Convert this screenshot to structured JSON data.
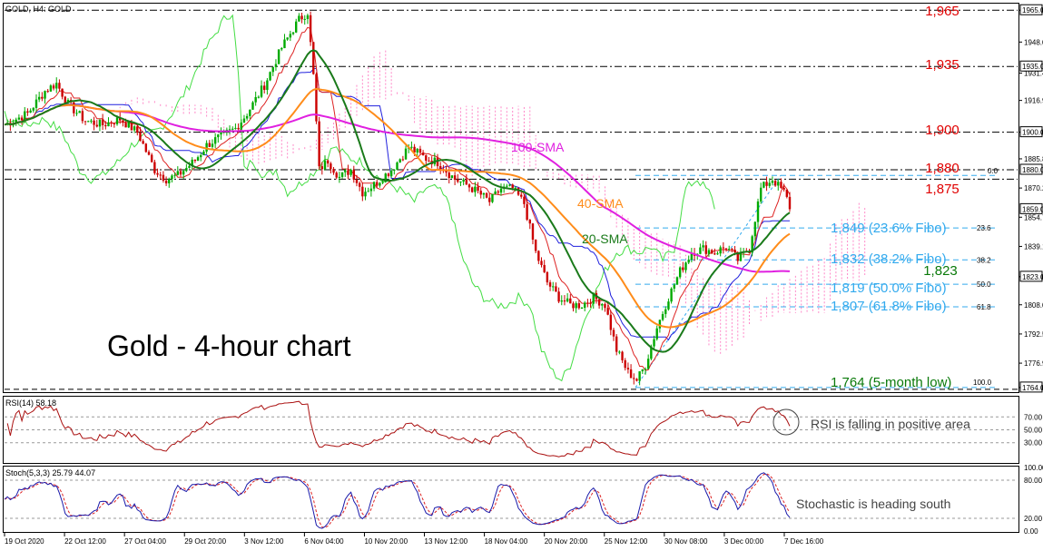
{
  "header": {
    "symbol_label": "GOLD, H4:  GOLD",
    "rsi_label": "RSI(14) 58.18",
    "stoch_label": "Stoch(5,3,3) 25.79 44.07"
  },
  "title": "Gold - 4-hour chart",
  "colors": {
    "up_candle": "#00aa00",
    "down_candle": "#cc0000",
    "sma20": "#1a7a1a",
    "sma40": "#ff8c1a",
    "sma100": "#e020e0",
    "level_red": "#e00000",
    "fibo": "#33aaee",
    "level_green": "#0a7a0a",
    "ichimoku_lead": "#44dd44",
    "ichimoku_blue": "#2020dd",
    "ichimoku_red": "#dd2222",
    "cloud": "#ff88c8",
    "rsi_line": "#aa1010",
    "stoch_main": "#1a1aaa",
    "stoch_signal": "#dd2222"
  },
  "price_axis": {
    "ticks": [
      "1965.00",
      "1948.02",
      "1931.47",
      "1916.92",
      "1900.00",
      "1885.82",
      "1870.27",
      "1854.72",
      "1839.17",
      "1823.00",
      "1808.07",
      "1792.52",
      "1776.97",
      "1764.00"
    ],
    "boxed": [
      "1965.00",
      "1935.00",
      "1900.00",
      "1880.00",
      "1859.02",
      "1823.00",
      "1764.00"
    ],
    "boxed_extra": "1935.00",
    "last_price": "1859.02"
  },
  "levels": {
    "red": [
      {
        "label": "1,965",
        "value": 1965
      },
      {
        "label": "1,935",
        "value": 1935
      },
      {
        "label": "1,900",
        "value": 1900
      },
      {
        "label": "1,880",
        "value": 1880
      },
      {
        "label": "1,875",
        "value": 1875
      }
    ],
    "fibo": [
      {
        "label": "1,849 (23.6% Fibo)",
        "value": 1849,
        "tag": "23.6"
      },
      {
        "label": "1,832 (38.2% Fibo)",
        "value": 1832,
        "tag": "38.2"
      },
      {
        "label": "1,819 (50.0% Fibo)",
        "value": 1819,
        "tag": "50.0"
      },
      {
        "label": "1,807 (61.8% Fibo)",
        "value": 1807,
        "tag": "61.8"
      }
    ],
    "fibo_top_tag": "0.0",
    "fibo_bottom_tag": "100.0",
    "green": [
      {
        "label": "1,823",
        "value": 1823
      },
      {
        "label": "1,764 (5-month low)",
        "value": 1764
      }
    ]
  },
  "sma_labels": {
    "sma100": "100-SMA",
    "sma40": "40-SMA",
    "sma20": "20-SMA"
  },
  "rsi": {
    "ticks": [
      "70.00",
      "50.00",
      "30.00"
    ],
    "note": "RSI is falling in positive area"
  },
  "stoch": {
    "ticks": [
      "100.00",
      "80.00",
      "20.00",
      "0.00"
    ],
    "note": "Stochastic is heading south"
  },
  "x_axis": {
    "labels": [
      "19 Oct 2020",
      "22 Oct 12:00",
      "27 Oct 04:00",
      "29 Oct 20:00",
      "3 Nov 12:00",
      "6 Nov 04:00",
      "10 Nov 20:00",
      "13 Nov 12:00",
      "18 Nov 04:00",
      "20 Nov 20:00",
      "25 Nov 12:00",
      "30 Nov 08:00",
      "3 Dec 00:00",
      "7 Dec 16:00"
    ]
  },
  "chart_data": {
    "type": "candlestick",
    "title": "Gold - 4-hour chart",
    "instrument": "GOLD, H4",
    "ylim": [
      1764,
      1968
    ],
    "x_start": "19 Oct 2020",
    "x_end": "7 Dec 16:00",
    "close_path": [
      [
        0,
        1904
      ],
      [
        8,
        1910
      ],
      [
        14,
        1922
      ],
      [
        18,
        1926
      ],
      [
        22,
        1915
      ],
      [
        28,
        1906
      ],
      [
        34,
        1904
      ],
      [
        40,
        1907
      ],
      [
        46,
        1900
      ],
      [
        52,
        1880
      ],
      [
        56,
        1875
      ],
      [
        60,
        1877
      ],
      [
        66,
        1885
      ],
      [
        70,
        1893
      ],
      [
        74,
        1897
      ],
      [
        80,
        1902
      ],
      [
        84,
        1910
      ],
      [
        90,
        1925
      ],
      [
        96,
        1945
      ],
      [
        102,
        1960
      ],
      [
        105,
        1964
      ],
      [
        107,
        1930
      ],
      [
        109,
        1880
      ],
      [
        112,
        1885
      ],
      [
        116,
        1876
      ],
      [
        120,
        1880
      ],
      [
        124,
        1868
      ],
      [
        128,
        1872
      ],
      [
        134,
        1880
      ],
      [
        140,
        1892
      ],
      [
        146,
        1886
      ],
      [
        150,
        1884
      ],
      [
        156,
        1875
      ],
      [
        160,
        1872
      ],
      [
        164,
        1868
      ],
      [
        168,
        1863
      ],
      [
        172,
        1870
      ],
      [
        176,
        1870
      ],
      [
        180,
        1862
      ],
      [
        184,
        1836
      ],
      [
        188,
        1820
      ],
      [
        192,
        1812
      ],
      [
        196,
        1808
      ],
      [
        200,
        1808
      ],
      [
        204,
        1812
      ],
      [
        208,
        1808
      ],
      [
        212,
        1784
      ],
      [
        216,
        1772
      ],
      [
        219,
        1768
      ],
      [
        222,
        1776
      ],
      [
        226,
        1796
      ],
      [
        230,
        1812
      ],
      [
        234,
        1826
      ],
      [
        238,
        1836
      ],
      [
        242,
        1838
      ],
      [
        246,
        1836
      ],
      [
        250,
        1839
      ],
      [
        254,
        1832
      ],
      [
        258,
        1838
      ],
      [
        262,
        1870
      ],
      [
        266,
        1875
      ],
      [
        270,
        1868
      ],
      [
        272,
        1861
      ]
    ],
    "series": [
      {
        "name": "20-SMA",
        "values": []
      },
      {
        "name": "40-SMA",
        "values": []
      },
      {
        "name": "100-SMA",
        "values": []
      }
    ],
    "annotations": [
      "1,965",
      "1,935",
      "1,900",
      "1,880",
      "1,875",
      "1,849 (23.6% Fibo)",
      "1,832 (38.2% Fibo)",
      "1,823",
      "1,819 (50.0% Fibo)",
      "1,807 (61.8% Fibo)",
      "1,764 (5-month low)"
    ]
  }
}
